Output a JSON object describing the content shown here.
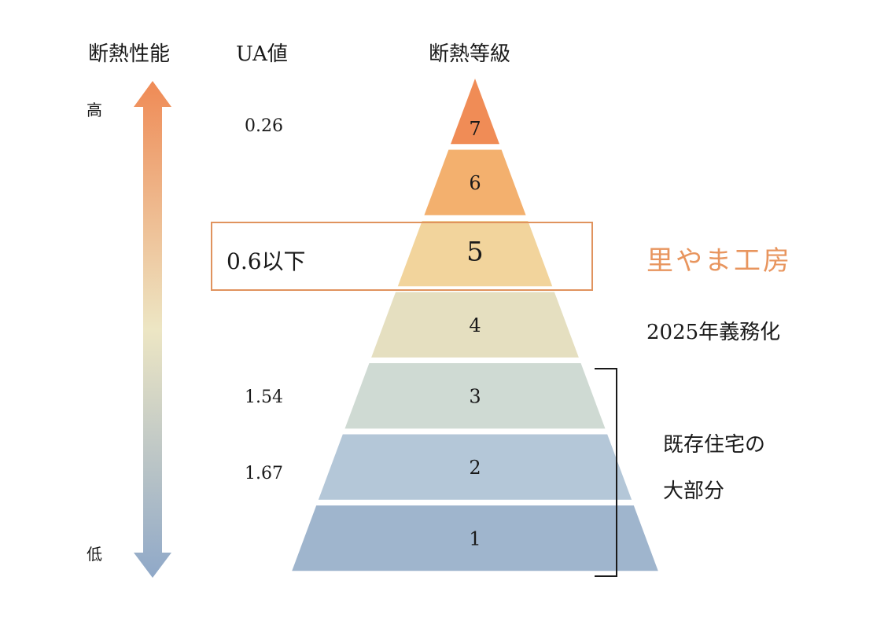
{
  "headers": {
    "performance": "断熱性能",
    "ua_value": "UA値",
    "grade": "断熱等級"
  },
  "arrow": {
    "high": "高",
    "low": "低",
    "color_top": "#ef8a55",
    "color_mid": "#ede6c4",
    "color_bottom": "#8fa8c8"
  },
  "ua_values": {
    "g7": "0.26",
    "g5": "0.6以下",
    "g3": "1.54",
    "g2": "1.67"
  },
  "levels": [
    {
      "label": "7",
      "color": "#f08c56"
    },
    {
      "label": "6",
      "color": "#f3b06e"
    },
    {
      "label": "5",
      "color": "#f2d49c"
    },
    {
      "label": "4",
      "color": "#e5dfc0"
    },
    {
      "label": "3",
      "color": "#cfdad3"
    },
    {
      "label": "2",
      "color": "#b4c7d8"
    },
    {
      "label": "1",
      "color": "#9fb5cd"
    }
  ],
  "annotations": {
    "brand": "里やま工房",
    "mandatory": "2025年義務化",
    "existing_line1": "既存住宅の",
    "existing_line2": "大部分"
  },
  "highlight_color": "#e0935e"
}
